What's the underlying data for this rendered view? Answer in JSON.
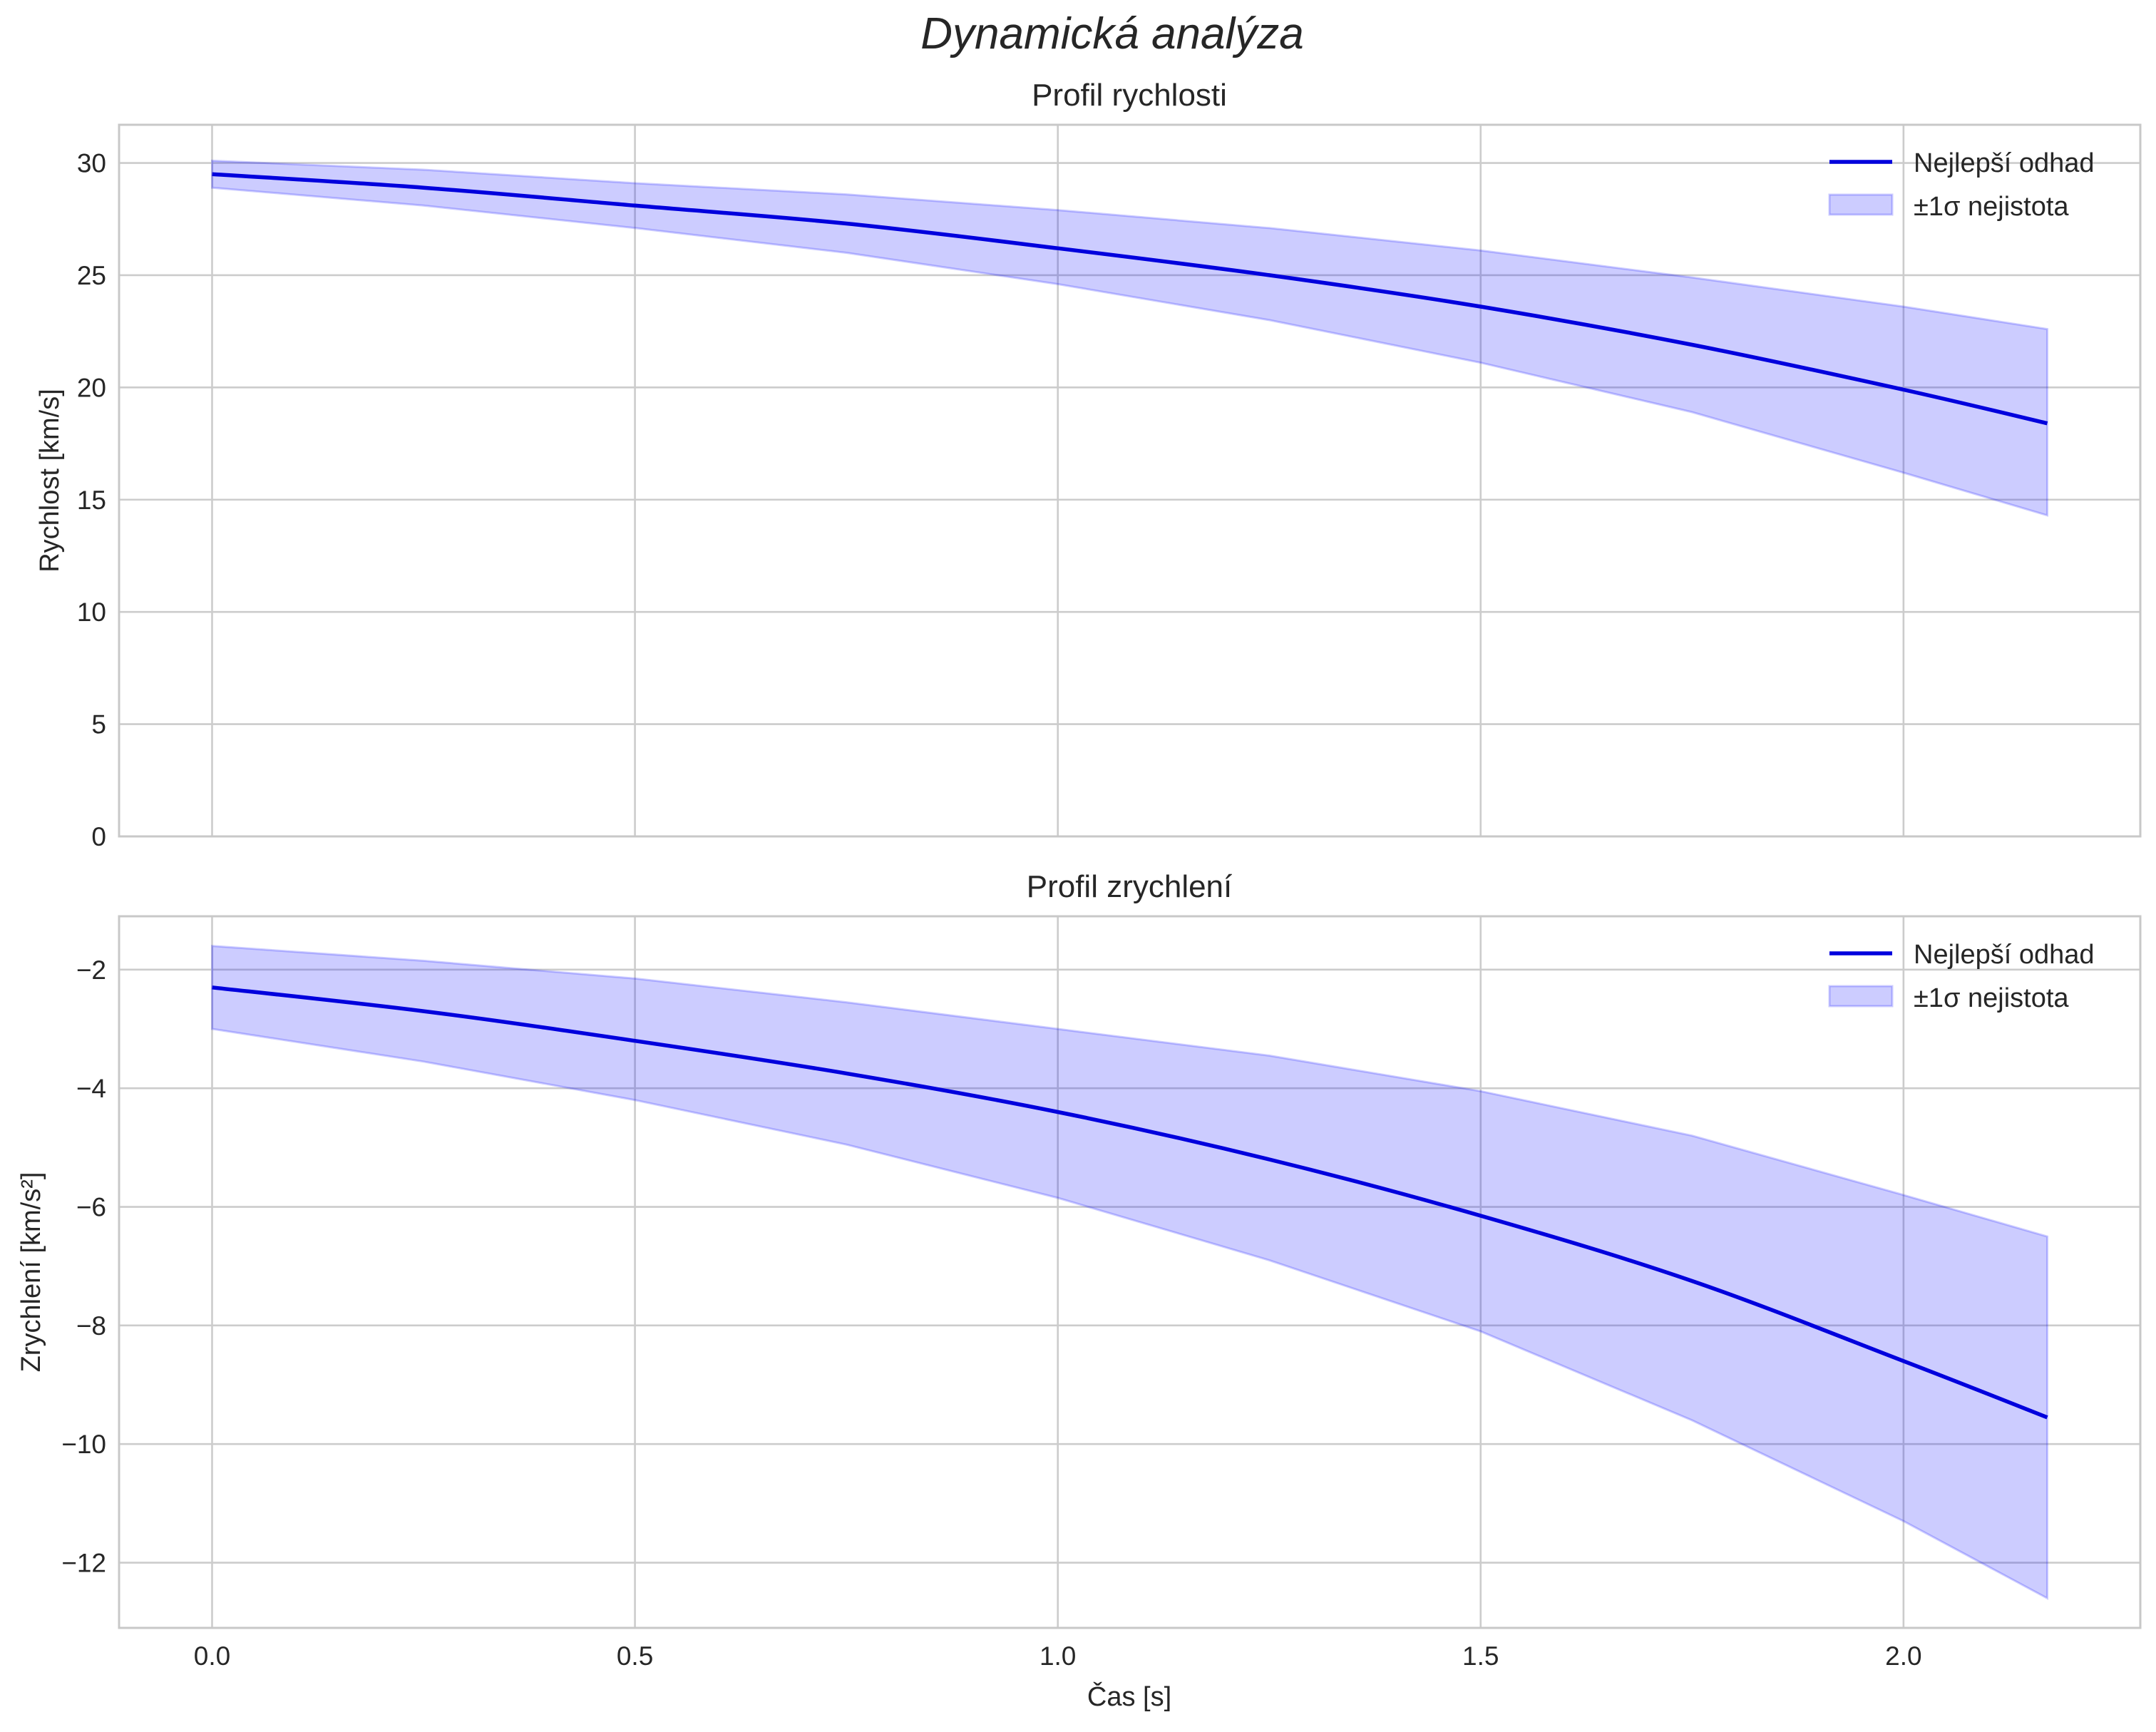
{
  "figure": {
    "suptitle": "Dynamická analýza"
  },
  "chart_data": [
    {
      "type": "line",
      "title": "Profil rychlosti",
      "xlabel": "",
      "ylabel": "Rychlost [km/s]",
      "xlim": [
        -0.11,
        2.28
      ],
      "ylim": [
        0,
        31.7
      ],
      "xticks": [
        0.0,
        0.5,
        1.0,
        1.5,
        2.0
      ],
      "xtick_labels_visible": false,
      "yticks": [
        0,
        5,
        10,
        15,
        20,
        25,
        30
      ],
      "grid": true,
      "legend": {
        "placement": "top-right",
        "entries": [
          "Nejlepší odhad",
          "±1σ nejistota"
        ]
      },
      "series": [
        {
          "name": "Nejlepší odhad",
          "x": [
            0.0,
            0.25,
            0.5,
            0.75,
            1.0,
            1.25,
            1.5,
            1.75,
            2.0,
            2.17
          ],
          "values": [
            29.5,
            28.9,
            28.1,
            27.3,
            26.2,
            25.0,
            23.6,
            21.9,
            19.9,
            18.4
          ]
        },
        {
          "name": "±1σ nejistota",
          "kind": "band",
          "x": [
            0.0,
            0.25,
            0.5,
            0.75,
            1.0,
            1.25,
            1.5,
            1.75,
            2.0,
            2.17
          ],
          "upper": [
            30.1,
            29.7,
            29.1,
            28.6,
            27.9,
            27.1,
            26.1,
            24.9,
            23.6,
            22.6
          ],
          "lower": [
            28.9,
            28.1,
            27.1,
            26.0,
            24.6,
            23.0,
            21.1,
            18.9,
            16.2,
            14.3
          ]
        }
      ]
    },
    {
      "type": "line",
      "title": "Profil zrychlení",
      "xlabel": "Čas [s]",
      "ylabel": "Zrychlení [km/s²]",
      "xlim": [
        -0.11,
        2.28
      ],
      "ylim": [
        -13.1,
        -1.1
      ],
      "xticks": [
        0.0,
        0.5,
        1.0,
        1.5,
        2.0
      ],
      "xtick_labels": [
        "0.0",
        "0.5",
        "1.0",
        "1.5",
        "2.0"
      ],
      "yticks": [
        -12,
        -10,
        -8,
        -6,
        -4,
        -2
      ],
      "ytick_labels": [
        "−12",
        "−10",
        "−8",
        "−6",
        "−4",
        "−2"
      ],
      "grid": true,
      "legend": {
        "placement": "top-right",
        "entries": [
          "Nejlepší odhad",
          "±1σ nejistota"
        ]
      },
      "series": [
        {
          "name": "Nejlepší odhad",
          "x": [
            0.0,
            0.25,
            0.5,
            0.75,
            1.0,
            1.25,
            1.5,
            1.75,
            2.0,
            2.17
          ],
          "values": [
            -2.3,
            -2.7,
            -3.2,
            -3.75,
            -4.4,
            -5.2,
            -6.15,
            -7.25,
            -8.6,
            -9.55
          ]
        },
        {
          "name": "±1σ nejistota",
          "kind": "band",
          "x": [
            0.0,
            0.25,
            0.5,
            0.75,
            1.0,
            1.25,
            1.5,
            1.75,
            2.0,
            2.17
          ],
          "upper": [
            -1.6,
            -1.85,
            -2.15,
            -2.55,
            -3.0,
            -3.45,
            -4.05,
            -4.8,
            -5.8,
            -6.5
          ],
          "lower": [
            -3.0,
            -3.55,
            -4.2,
            -4.95,
            -5.85,
            -6.9,
            -8.1,
            -9.6,
            -11.3,
            -12.6
          ]
        }
      ]
    }
  ]
}
